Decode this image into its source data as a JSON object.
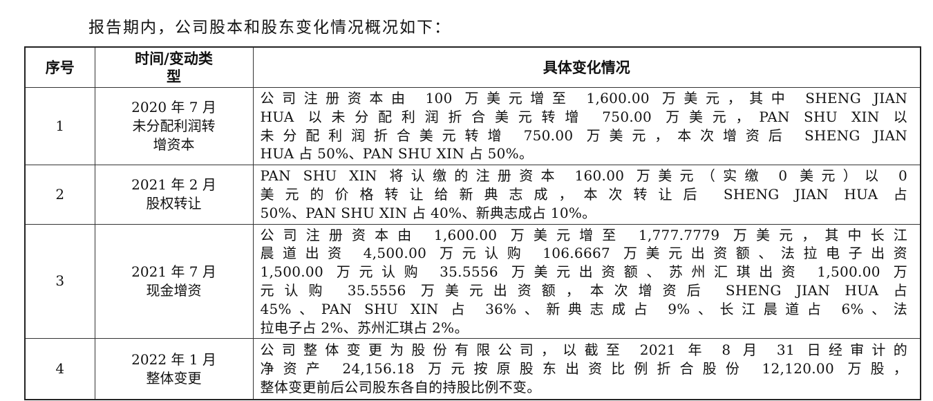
{
  "intro": "报告期内，公司股本和股东变化情况概况如下：",
  "table": {
    "headers": {
      "seq": "序号",
      "time_lines": [
        "时间/变动类",
        "型"
      ],
      "detail": "具体变化情况"
    },
    "rows": [
      {
        "seq": "1",
        "time_lines": [
          "2020 年 7 月",
          "未分配利润转",
          "增资本"
        ],
        "detail_lines": [
          "公司注册资本由 100 万美元增至 1,600.00 万美元，其中 SHENG JIAN",
          "HUA 以未分配利润折合美元转增 750.00 万美元，PAN SHU XIN 以",
          "未分配利润折合美元转增 750.00 万美元，本次增资后 SHENG JIAN",
          "HUA 占 50%、PAN SHU XIN 占 50%。"
        ]
      },
      {
        "seq": "2",
        "time_lines": [
          "2021 年 2 月",
          "股权转让"
        ],
        "detail_lines": [
          "PAN SHU XIN 将认缴的注册资本 160.00 万美元（实缴 0 美元）以 0",
          "美元的价格转让给新典志成，本次转让后 SHENG JIAN HUA 占",
          "50%、PAN SHU XIN 占 40%、新典志成占 10%。"
        ]
      },
      {
        "seq": "3",
        "time_lines": [
          "2021 年 7 月",
          "现金增资"
        ],
        "detail_lines": [
          "公司注册资本由 1,600.00 万美元增至 1,777.7779 万美元，其中长江",
          "晨道出资 4,500.00 万元认购 106.6667 万美元出资额、法拉电子出资",
          "1,500.00 万元认购 35.5556 万美元出资额、苏州汇琪出资 1,500.00 万",
          "元认购 35.5556 万美元出资额，本次增资后 SHENG JIAN HUA 占",
          "45%、PAN SHU XIN 占 36%、新典志成占 9%、长江晨道占 6%、法",
          "拉电子占 2%、苏州汇琪占 2%。"
        ]
      },
      {
        "seq": "4",
        "time_lines": [
          "2022 年 1 月",
          "整体变更"
        ],
        "detail_lines": [
          "公司整体变更为股份有限公司，以截至 2021 年 8 月 31 日经审计的",
          "净资产 24,156.18 万元按原股东出资比例折合股份 12,120.00 万股，",
          "整体变更前后公司股东各自的持股比例不变。"
        ]
      }
    ]
  }
}
